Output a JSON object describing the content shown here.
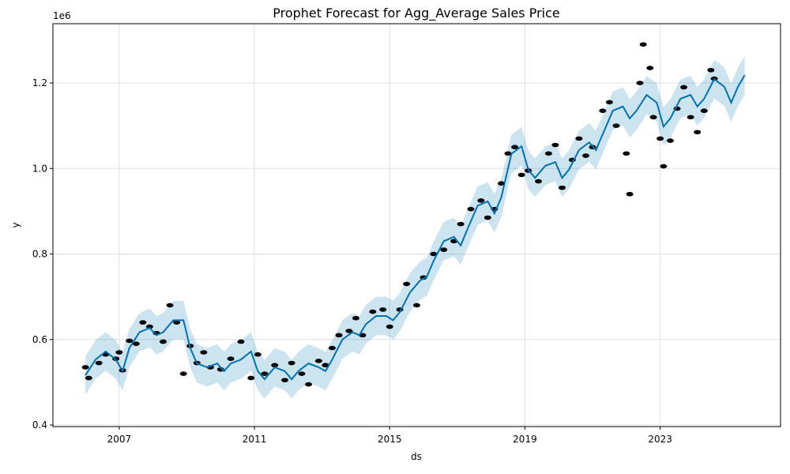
{
  "chart_data": {
    "type": "forecast",
    "title": "Prophet Forecast for Agg_Average Sales Price",
    "x_label": "ds",
    "y_label": "y",
    "y_offset": "1e6",
    "xlim": [
      2005.04,
      2026.56
    ],
    "xticks": [
      2007,
      2011,
      2015,
      2019,
      2023
    ],
    "ylim": [
      0.3963,
      1.3386
    ],
    "yticks": [
      0.4,
      0.6,
      0.8,
      {
        "value": 1,
        "label": "1.0"
      },
      1.2
    ],
    "grid": true,
    "x": [
      2006.0,
      2006.3,
      2006.6,
      2006.9,
      2007.1,
      2007.3,
      2007.6,
      2007.9,
      2008.1,
      2008.3,
      2008.6,
      2008.9,
      2009.1,
      2009.3,
      2009.6,
      2009.9,
      2010.1,
      2010.3,
      2010.6,
      2010.9,
      2011.1,
      2011.3,
      2011.6,
      2011.9,
      2012.1,
      2012.3,
      2012.6,
      2012.9,
      2013.1,
      2013.3,
      2013.6,
      2013.9,
      2014.1,
      2014.3,
      2014.6,
      2014.9,
      2015.1,
      2015.3,
      2015.6,
      2015.9,
      2016.1,
      2016.3,
      2016.6,
      2016.9,
      2017.1,
      2017.3,
      2017.6,
      2017.9,
      2018.1,
      2018.3,
      2018.6,
      2018.9,
      2019.1,
      2019.3,
      2019.6,
      2019.9,
      2020.1,
      2020.3,
      2020.6,
      2020.9,
      2021.1,
      2021.3,
      2021.6,
      2021.9,
      2022.1,
      2022.3,
      2022.6,
      2022.9,
      2023.1,
      2023.3,
      2023.6,
      2023.9,
      2024.1,
      2024.3,
      2024.6,
      2024.9,
      2025.1,
      2025.3,
      2025.5
    ],
    "series": [
      {
        "color": "#0072B2",
        "values": [
          0.516,
          0.553,
          0.572,
          0.553,
          0.526,
          0.58,
          0.617,
          0.627,
          0.61,
          0.617,
          0.645,
          0.645,
          0.58,
          0.544,
          0.535,
          0.544,
          0.526,
          0.544,
          0.553,
          0.572,
          0.526,
          0.507,
          0.535,
          0.526,
          0.507,
          0.526,
          0.544,
          0.535,
          0.526,
          0.553,
          0.6,
          0.617,
          0.61,
          0.636,
          0.655,
          0.655,
          0.645,
          0.664,
          0.71,
          0.738,
          0.747,
          0.784,
          0.83,
          0.84,
          0.82,
          0.858,
          0.913,
          0.923,
          0.895,
          0.932,
          1.034,
          1.052,
          0.997,
          0.978,
          1.006,
          1.015,
          0.978,
          0.997,
          1.043,
          1.061,
          1.043,
          1.08,
          1.135,
          1.145,
          1.117,
          1.135,
          1.172,
          1.154,
          1.098,
          1.117,
          1.163,
          1.172,
          1.145,
          1.163,
          1.209,
          1.191,
          1.154,
          1.191,
          1.218
        ]
      }
    ],
    "band": {
      "color": "#0072B2",
      "lower": [
        0.471,
        0.508,
        0.527,
        0.508,
        0.481,
        0.535,
        0.572,
        0.582,
        0.565,
        0.572,
        0.6,
        0.6,
        0.535,
        0.499,
        0.49,
        0.499,
        0.481,
        0.499,
        0.508,
        0.527,
        0.481,
        0.462,
        0.49,
        0.481,
        0.462,
        0.481,
        0.499,
        0.49,
        0.481,
        0.508,
        0.555,
        0.572,
        0.565,
        0.591,
        0.61,
        0.61,
        0.6,
        0.619,
        0.665,
        0.693,
        0.702,
        0.739,
        0.785,
        0.795,
        0.775,
        0.813,
        0.868,
        0.878,
        0.85,
        0.887,
        0.989,
        1.007,
        0.952,
        0.933,
        0.961,
        0.97,
        0.933,
        0.952,
        0.998,
        1.016,
        0.998,
        1.035,
        1.09,
        1.1,
        1.072,
        1.09,
        1.127,
        1.109,
        1.053,
        1.072,
        1.118,
        1.127,
        1.1,
        1.118,
        1.164,
        1.146,
        1.109,
        1.146,
        1.173
      ],
      "upper": [
        0.561,
        0.598,
        0.617,
        0.598,
        0.571,
        0.625,
        0.662,
        0.672,
        0.655,
        0.662,
        0.69,
        0.69,
        0.625,
        0.589,
        0.58,
        0.589,
        0.571,
        0.589,
        0.598,
        0.617,
        0.571,
        0.552,
        0.58,
        0.571,
        0.552,
        0.571,
        0.589,
        0.58,
        0.571,
        0.598,
        0.645,
        0.662,
        0.655,
        0.681,
        0.7,
        0.7,
        0.69,
        0.709,
        0.755,
        0.783,
        0.792,
        0.829,
        0.875,
        0.885,
        0.865,
        0.903,
        0.958,
        0.968,
        0.94,
        0.977,
        1.079,
        1.097,
        1.042,
        1.023,
        1.051,
        1.06,
        1.023,
        1.042,
        1.088,
        1.106,
        1.088,
        1.125,
        1.18,
        1.19,
        1.162,
        1.18,
        1.217,
        1.199,
        1.143,
        1.162,
        1.208,
        1.217,
        1.19,
        1.208,
        1.254,
        1.236,
        1.199,
        1.236,
        1.263
      ]
    },
    "points": {
      "color": "#000000",
      "x": [
        2006.0,
        2006.1,
        2006.4,
        2006.6,
        2006.9,
        2007.0,
        2007.1,
        2007.3,
        2007.5,
        2007.7,
        2007.9,
        2008.1,
        2008.3,
        2008.5,
        2008.7,
        2008.9,
        2009.1,
        2009.3,
        2009.5,
        2009.7,
        2010.0,
        2010.3,
        2010.6,
        2010.9,
        2011.1,
        2011.3,
        2011.6,
        2011.9,
        2012.1,
        2012.4,
        2012.6,
        2012.9,
        2013.1,
        2013.3,
        2013.5,
        2013.8,
        2014.0,
        2014.2,
        2014.5,
        2014.8,
        2015.0,
        2015.3,
        2015.5,
        2015.8,
        2016.0,
        2016.3,
        2016.6,
        2016.9,
        2017.1,
        2017.4,
        2017.7,
        2017.9,
        2018.1,
        2018.3,
        2018.5,
        2018.7,
        2018.9,
        2019.1,
        2019.4,
        2019.7,
        2019.9,
        2020.1,
        2020.4,
        2020.6,
        2020.8,
        2021.0,
        2021.3,
        2021.5,
        2021.7,
        2022.0,
        2022.1,
        2022.4,
        2022.5,
        2022.7,
        2022.8,
        2023.0,
        2023.1,
        2023.3,
        2023.5,
        2023.7,
        2023.9,
        2024.1,
        2024.3,
        2024.5,
        2024.6
      ],
      "values": [
        0.535,
        0.51,
        0.545,
        0.565,
        0.555,
        0.57,
        0.528,
        0.597,
        0.59,
        0.64,
        0.63,
        0.615,
        0.595,
        0.68,
        0.64,
        0.52,
        0.585,
        0.545,
        0.57,
        0.535,
        0.53,
        0.555,
        0.595,
        0.51,
        0.565,
        0.52,
        0.54,
        0.505,
        0.545,
        0.52,
        0.495,
        0.55,
        0.54,
        0.58,
        0.61,
        0.62,
        0.65,
        0.61,
        0.665,
        0.67,
        0.63,
        0.67,
        0.73,
        0.68,
        0.745,
        0.8,
        0.81,
        0.83,
        0.87,
        0.905,
        0.925,
        0.885,
        0.905,
        0.965,
        1.035,
        1.05,
        0.985,
        0.995,
        0.97,
        1.035,
        1.055,
        0.955,
        1.02,
        1.07,
        1.03,
        1.05,
        1.135,
        1.155,
        1.1,
        1.035,
        0.94,
        1.2,
        1.29,
        1.235,
        1.12,
        1.07,
        1.005,
        1.065,
        1.14,
        1.19,
        1.12,
        1.085,
        1.135,
        1.23,
        1.21
      ]
    }
  }
}
